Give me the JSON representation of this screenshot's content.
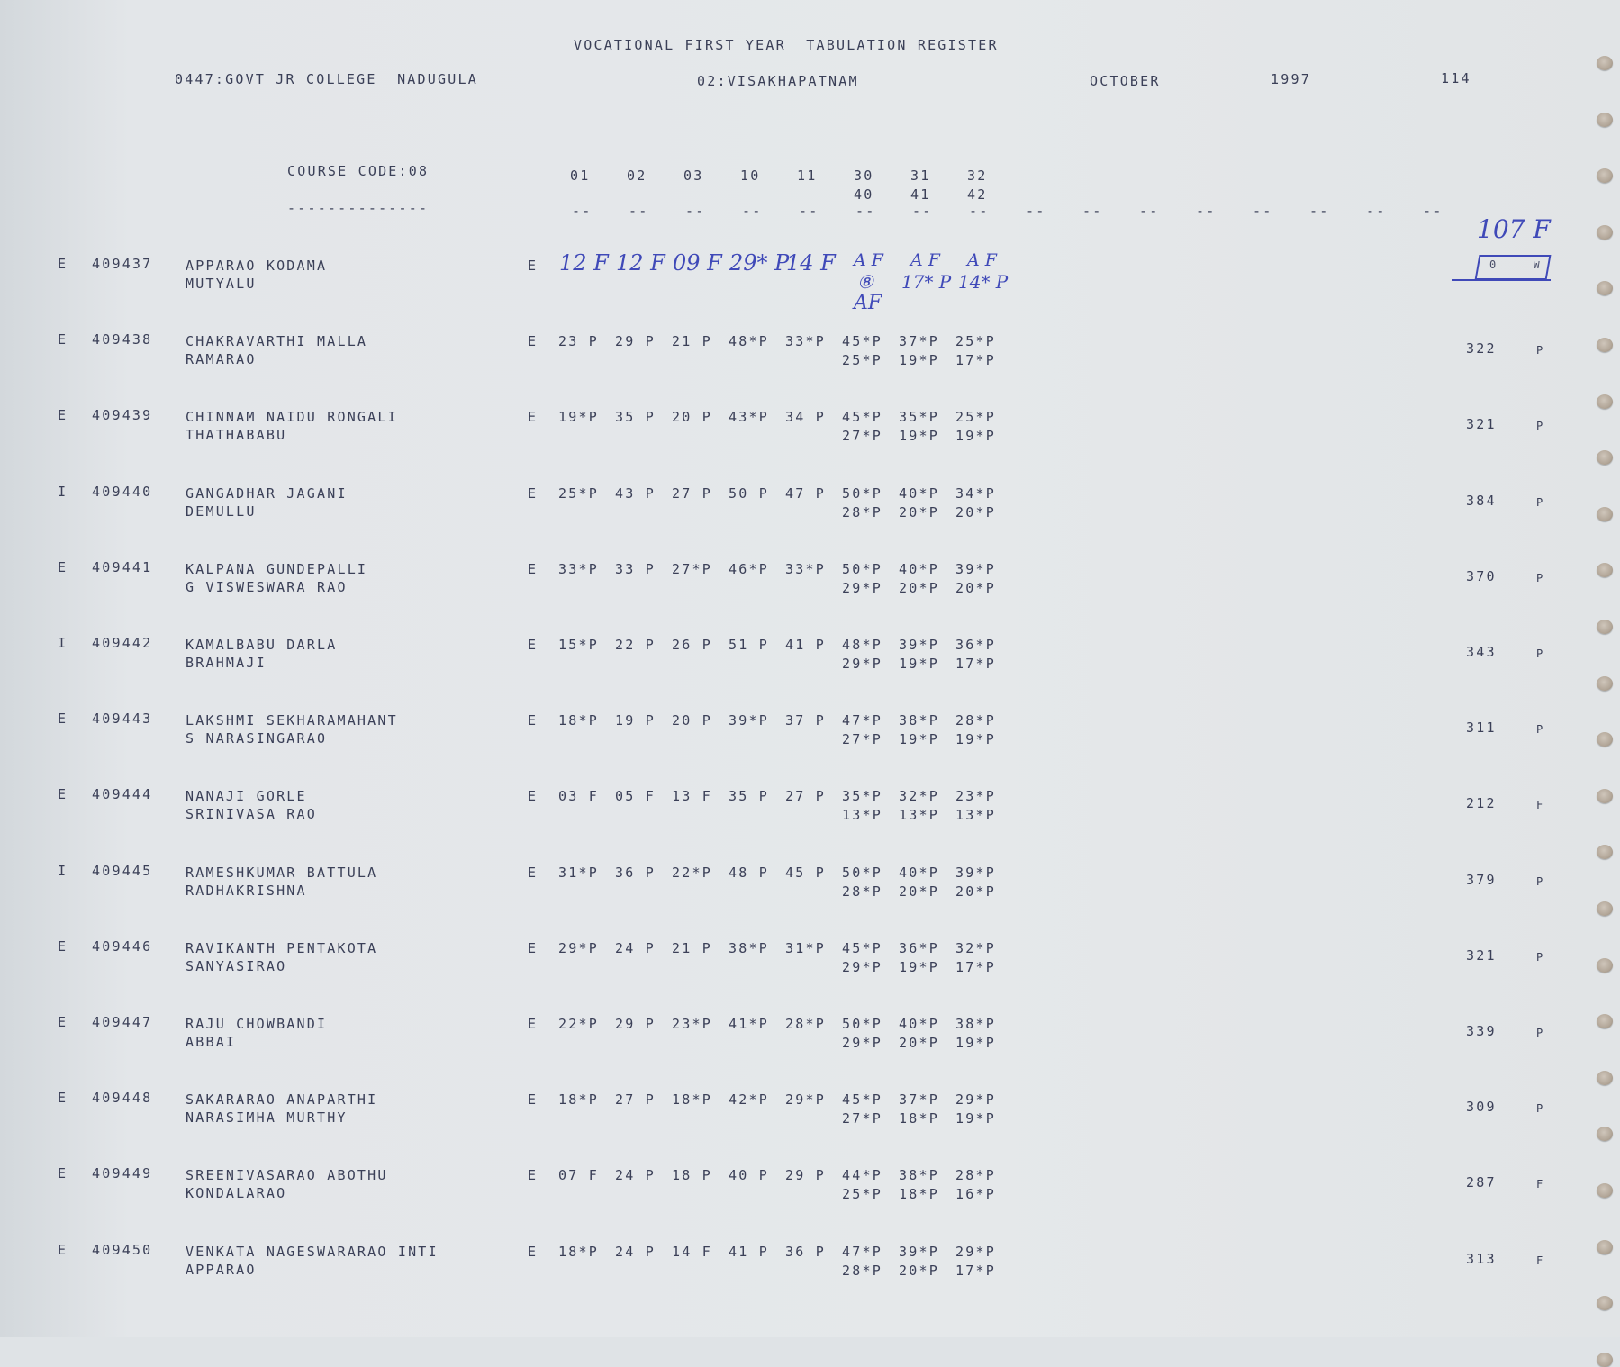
{
  "header": {
    "title": "VOCATIONAL FIRST YEAR  TABULATION REGISTER",
    "college": "0447:GOVT JR COLLEGE  NADUGULA",
    "district": "02:VISAKHAPATNAM",
    "month": "OCTOBER",
    "year": "1997",
    "page": "114",
    "course_code": "COURSE CODE:08",
    "course_underline": "--------------",
    "subject_codes_row1": [
      "01",
      "02",
      "03",
      "10",
      "11",
      "30",
      "31",
      "32"
    ],
    "subject_codes_row2": [
      "40",
      "41",
      "42"
    ],
    "dash_columns": 16
  },
  "rows": [
    {
      "type": "E",
      "roll": "409437",
      "name1": "APPARAO KODAMA",
      "name2": "MUTYALU",
      "exam": "E",
      "marks1": [
        "12 F",
        "12 F",
        "09 F",
        "29* P",
        "14 F",
        "A F",
        "A F",
        "A F"
      ],
      "marks2": [
        "⑧",
        "17* P",
        "14* P"
      ],
      "marks3": "AF",
      "handwritten": true,
      "total": "",
      "result": "",
      "note": "107 F",
      "box_left": "0",
      "box_right": "W"
    },
    {
      "type": "E",
      "roll": "409438",
      "name1": "CHAKRAVARTHI MALLA",
      "name2": "RAMARAO",
      "exam": "E",
      "marks1": [
        "23 P",
        "29 P",
        "21 P",
        "48*P",
        "33*P",
        "45*P",
        "37*P",
        "25*P"
      ],
      "marks2": [
        "25*P",
        "19*P",
        "17*P"
      ],
      "total": "322",
      "result": "P"
    },
    {
      "type": "E",
      "roll": "409439",
      "name1": "CHINNAM NAIDU RONGALI",
      "name2": "THATHABABU",
      "exam": "E",
      "marks1": [
        "19*P",
        "35 P",
        "20 P",
        "43*P",
        "34 P",
        "45*P",
        "35*P",
        "25*P"
      ],
      "marks2": [
        "27*P",
        "19*P",
        "19*P"
      ],
      "total": "321",
      "result": "P"
    },
    {
      "type": "I",
      "roll": "409440",
      "name1": "GANGADHAR JAGANI",
      "name2": "DEMULLU",
      "exam": "E",
      "marks1": [
        "25*P",
        "43 P",
        "27 P",
        "50 P",
        "47 P",
        "50*P",
        "40*P",
        "34*P"
      ],
      "marks2": [
        "28*P",
        "20*P",
        "20*P"
      ],
      "total": "384",
      "result": "P"
    },
    {
      "type": "E",
      "roll": "409441",
      "name1": "KALPANA GUNDEPALLI",
      "name2": "G VISWESWARA RAO",
      "exam": "E",
      "marks1": [
        "33*P",
        "33 P",
        "27*P",
        "46*P",
        "33*P",
        "50*P",
        "40*P",
        "39*P"
      ],
      "marks2": [
        "29*P",
        "20*P",
        "20*P"
      ],
      "total": "370",
      "result": "P"
    },
    {
      "type": "I",
      "roll": "409442",
      "name1": "KAMALBABU DARLA",
      "name2": "BRAHMAJI",
      "exam": "E",
      "marks1": [
        "15*P",
        "22 P",
        "26 P",
        "51 P",
        "41 P",
        "48*P",
        "39*P",
        "36*P"
      ],
      "marks2": [
        "29*P",
        "19*P",
        "17*P"
      ],
      "total": "343",
      "result": "P"
    },
    {
      "type": "E",
      "roll": "409443",
      "name1": "LAKSHMI SEKHARAMAHANT",
      "name2": "S NARASINGARAO",
      "exam": "E",
      "marks1": [
        "18*P",
        "19 P",
        "20 P",
        "39*P",
        "37 P",
        "47*P",
        "38*P",
        "28*P"
      ],
      "marks2": [
        "27*P",
        "19*P",
        "19*P"
      ],
      "total": "311",
      "result": "P"
    },
    {
      "type": "E",
      "roll": "409444",
      "name1": "NANAJI GORLE",
      "name2": "SRINIVASA RAO",
      "exam": "E",
      "marks1": [
        "03 F",
        "05 F",
        "13 F",
        "35 P",
        "27 P",
        "35*P",
        "32*P",
        "23*P"
      ],
      "marks2": [
        "13*P",
        "13*P",
        "13*P"
      ],
      "total": "212",
      "result": "F"
    },
    {
      "type": "I",
      "roll": "409445",
      "name1": "RAMESHKUMAR BATTULA",
      "name2": "RADHAKRISHNA",
      "exam": "E",
      "marks1": [
        "31*P",
        "36 P",
        "22*P",
        "48 P",
        "45 P",
        "50*P",
        "40*P",
        "39*P"
      ],
      "marks2": [
        "28*P",
        "20*P",
        "20*P"
      ],
      "total": "379",
      "result": "P"
    },
    {
      "type": "E",
      "roll": "409446",
      "name1": "RAVIKANTH PENTAKOTA",
      "name2": "SANYASIRAO",
      "exam": "E",
      "marks1": [
        "29*P",
        "24 P",
        "21 P",
        "38*P",
        "31*P",
        "45*P",
        "36*P",
        "32*P"
      ],
      "marks2": [
        "29*P",
        "19*P",
        "17*P"
      ],
      "total": "321",
      "result": "P"
    },
    {
      "type": "E",
      "roll": "409447",
      "name1": "RAJU CHOWBANDI",
      "name2": "ABBAI",
      "exam": "E",
      "marks1": [
        "22*P",
        "29 P",
        "23*P",
        "41*P",
        "28*P",
        "50*P",
        "40*P",
        "38*P"
      ],
      "marks2": [
        "29*P",
        "20*P",
        "19*P"
      ],
      "total": "339",
      "result": "P"
    },
    {
      "type": "E",
      "roll": "409448",
      "name1": "SAKARARAO ANAPARTHI",
      "name2": "NARASIMHA MURTHY",
      "exam": "E",
      "marks1": [
        "18*P",
        "27 P",
        "18*P",
        "42*P",
        "29*P",
        "45*P",
        "37*P",
        "29*P"
      ],
      "marks2": [
        "27*P",
        "18*P",
        "19*P"
      ],
      "total": "309",
      "result": "P"
    },
    {
      "type": "E",
      "roll": "409449",
      "name1": "SREENIVASARAO ABOTHU",
      "name2": "KONDALARAO",
      "exam": "E",
      "marks1": [
        "07 F",
        "24 P",
        "18 P",
        "40 P",
        "29 P",
        "44*P",
        "38*P",
        "28*P"
      ],
      "marks2": [
        "25*P",
        "18*P",
        "16*P"
      ],
      "total": "287",
      "result": "F"
    },
    {
      "type": "E",
      "roll": "409450",
      "name1": "VENKATA NAGESWARARAO INTI",
      "name2": "APPARAO",
      "exam": "E",
      "marks1": [
        "18*P",
        "24 P",
        "14 F",
        "41 P",
        "36 P",
        "47*P",
        "39*P",
        "29*P"
      ],
      "marks2": [
        "28*P",
        "20*P",
        "17*P"
      ],
      "total": "313",
      "result": "F"
    }
  ],
  "colors": {
    "ink": "#3b4058",
    "pen": "#3f49b8",
    "paper": "#e3e6e9"
  }
}
